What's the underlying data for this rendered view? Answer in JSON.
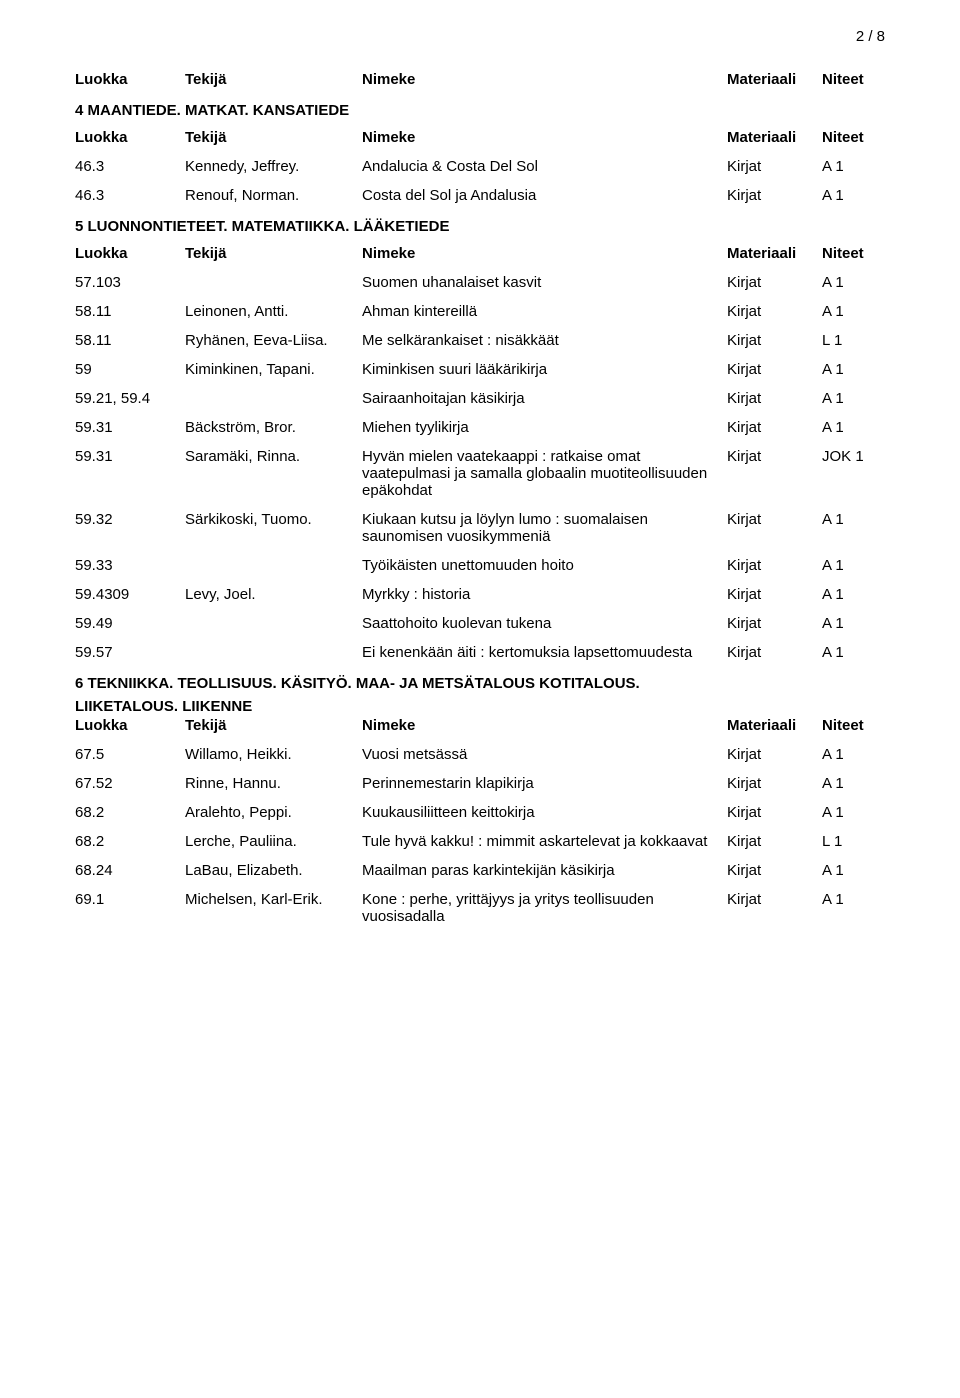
{
  "page": "2 / 8",
  "columns": {
    "c1": "Luokka",
    "c2": "Tekijä",
    "c3": "Nimeke",
    "c4": "Materiaali",
    "c5": "Niteet"
  },
  "kirjat": "Kirjat",
  "a1": "A 1",
  "l1": "L 1",
  "jok1": "JOK 1",
  "sec1": {
    "title": "4 MAANTIEDE. MATKAT. KANSATIEDE"
  },
  "r1": {
    "luokka": "46.3",
    "tekija": "Kennedy, Jeffrey.",
    "nimeke": "Andalucia & Costa Del Sol"
  },
  "r2": {
    "luokka": "46.3",
    "tekija": "Renouf, Norman.",
    "nimeke": "Costa del Sol ja Andalusia"
  },
  "sec2": {
    "title": "5 LUONNONTIETEET. MATEMATIIKKA. LÄÄKETIEDE"
  },
  "r3": {
    "luokka": "57.103",
    "tekija": "",
    "nimeke": "Suomen uhanalaiset kasvit"
  },
  "r4": {
    "luokka": "58.11",
    "tekija": "Leinonen, Antti.",
    "nimeke": "Ahman kintereillä"
  },
  "r5": {
    "luokka": "58.11",
    "tekija": "Ryhänen, Eeva-Liisa.",
    "nimeke": "Me selkärankaiset : nisäkkäät"
  },
  "r6": {
    "luokka": "59",
    "tekija": "Kiminkinen, Tapani.",
    "nimeke": "Kiminkisen suuri lääkärikirja"
  },
  "r7": {
    "luokka": "59.21, 59.4",
    "tekija": "",
    "nimeke": "Sairaanhoitajan käsikirja"
  },
  "r8": {
    "luokka": "59.31",
    "tekija": "Bäckström, Bror.",
    "nimeke": "Miehen tyylikirja"
  },
  "r9": {
    "luokka": "59.31",
    "tekija": "Saramäki, Rinna.",
    "nimeke": "Hyvän mielen vaatekaappi : ratkaise omat vaatepulmasi ja samalla globaalin muotiteollisuuden epäkohdat"
  },
  "r10": {
    "luokka": "59.32",
    "tekija": "Särkikoski, Tuomo.",
    "nimeke": "Kiukaan kutsu ja löylyn lumo : suomalaisen saunomisen vuosikymmeniä"
  },
  "r11": {
    "luokka": "59.33",
    "tekija": "",
    "nimeke": "Työikäisten unettomuuden hoito"
  },
  "r12": {
    "luokka": "59.4309",
    "tekija": "Levy, Joel.",
    "nimeke": "Myrkky : historia"
  },
  "r13": {
    "luokka": "59.49",
    "tekija": "",
    "nimeke": "Saattohoito kuolevan tukena"
  },
  "r14": {
    "luokka": "59.57",
    "tekija": "",
    "nimeke": "Ei kenenkään äiti : kertomuksia lapsettomuudesta"
  },
  "sec3": {
    "line1": "6 TEKNIIKKA. TEOLLISUUS. KÄSITYÖ. MAA- JA METSÄTALOUS KOTITALOUS.",
    "line2": "LIIKETALOUS. LIIKENNE"
  },
  "r15": {
    "luokka": "67.5",
    "tekija": "Willamo, Heikki.",
    "nimeke": "Vuosi metsässä"
  },
  "r16": {
    "luokka": "67.52",
    "tekija": "Rinne, Hannu.",
    "nimeke": "Perinnemestarin klapikirja"
  },
  "r17": {
    "luokka": "68.2",
    "tekija": "Aralehto, Peppi.",
    "nimeke": "Kuukausiliitteen keittokirja"
  },
  "r18": {
    "luokka": "68.2",
    "tekija": "Lerche, Pauliina.",
    "nimeke": "Tule hyvä kakku! : mimmit askartelevat ja kokkaavat"
  },
  "r19": {
    "luokka": "68.24",
    "tekija": "LaBau, Elizabeth.",
    "nimeke": "Maailman paras karkintekijän käsikirja"
  },
  "r20": {
    "luokka": "69.1",
    "tekija": "Michelsen, Karl-Erik.",
    "nimeke": "Kone : perhe, yrittäjyys ja yritys teollisuuden vuosisadalla"
  }
}
